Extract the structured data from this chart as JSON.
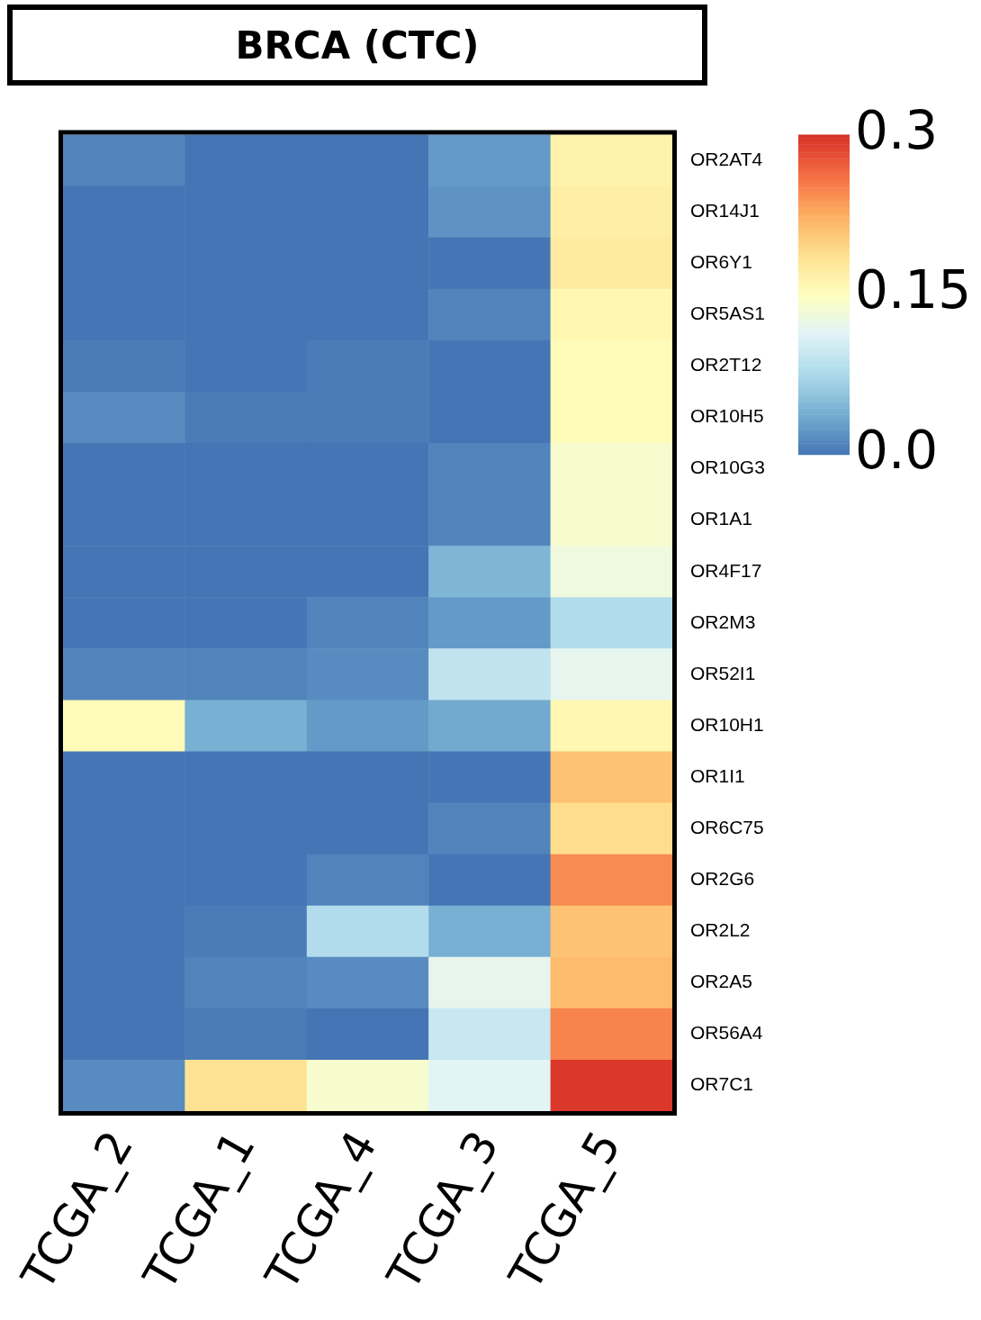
{
  "chart_data": {
    "type": "heatmap",
    "title": "BRCA (CTC)",
    "categories": [
      "TCGA_2",
      "TCGA_1",
      "TCGA_4",
      "TCGA_3",
      "TCGA_5"
    ],
    "y_categories": [
      "OR2AT4",
      "OR14J1",
      "OR6Y1",
      "OR5AS1",
      "OR2T12",
      "OR10H5",
      "OR10G3",
      "OR1A1",
      "OR4F17",
      "OR2M3",
      "OR52I1",
      "OR10H1",
      "OR1I1",
      "OR6C75",
      "OR2G6",
      "OR2L2",
      "OR2A5",
      "OR56A4",
      "OR7C1"
    ],
    "cells": [
      [
        0.01,
        0.0,
        0.0,
        0.025,
        0.165
      ],
      [
        0.0,
        0.0,
        0.0,
        0.02,
        0.17
      ],
      [
        0.0,
        0.0,
        0.0,
        0.0,
        0.175
      ],
      [
        0.0,
        0.0,
        0.0,
        0.01,
        0.16
      ],
      [
        0.005,
        0.0,
        0.005,
        0.0,
        0.155
      ],
      [
        0.015,
        0.005,
        0.005,
        0.0,
        0.155
      ],
      [
        0.0,
        0.0,
        0.0,
        0.01,
        0.14
      ],
      [
        0.0,
        0.0,
        0.0,
        0.01,
        0.14
      ],
      [
        0.0,
        0.0,
        0.0,
        0.045,
        0.13
      ],
      [
        0.0,
        0.0,
        0.01,
        0.025,
        0.08
      ],
      [
        0.01,
        0.01,
        0.015,
        0.09,
        0.12
      ],
      [
        0.155,
        0.04,
        0.025,
        0.035,
        0.16
      ],
      [
        0.0,
        0.0,
        0.0,
        0.0,
        0.21
      ],
      [
        0.0,
        0.0,
        0.0,
        0.01,
        0.19
      ],
      [
        0.0,
        0.0,
        0.01,
        0.0,
        0.245
      ],
      [
        0.0,
        0.005,
        0.08,
        0.04,
        0.21
      ],
      [
        0.0,
        0.01,
        0.015,
        0.12,
        0.215
      ],
      [
        0.0,
        0.005,
        0.0,
        0.095,
        0.25
      ],
      [
        0.015,
        0.185,
        0.14,
        0.115,
        0.295
      ]
    ],
    "clim": [
      0.0,
      0.3
    ],
    "cticks": [
      {
        "value": 0,
        "label": "0.0"
      },
      0.15,
      0.3
    ]
  }
}
